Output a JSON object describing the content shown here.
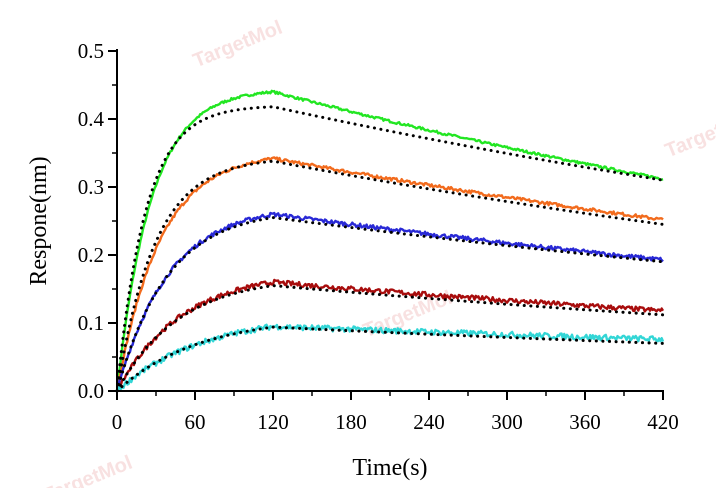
{
  "chart_data": {
    "type": "line",
    "title": "",
    "xlabel": "Time(s)",
    "ylabel": "Respone(nm)",
    "xlim": [
      0,
      420
    ],
    "ylim": [
      0.0,
      0.5
    ],
    "x_ticks": [
      0,
      60,
      120,
      180,
      240,
      300,
      360,
      420
    ],
    "x_tick_labels": [
      "0",
      "60",
      "120",
      "180",
      "240",
      "300",
      "360",
      "420"
    ],
    "y_ticks": [
      0.0,
      0.1,
      0.2,
      0.3,
      0.4,
      0.5
    ],
    "y_tick_labels": [
      "0.0",
      "0.1",
      "0.2",
      "0.3",
      "0.4",
      "0.5"
    ],
    "grid": false,
    "legend": "none",
    "association_end": 120,
    "fit_style": "black dotted",
    "series": [
      {
        "color": "#22e622",
        "peak": 0.44,
        "end": 0.312,
        "fit_peak": 0.418,
        "fit_end": 0.31,
        "k": 0.038,
        "fit_k": 0.045
      },
      {
        "color": "#f26b1d",
        "peak": 0.342,
        "end": 0.252,
        "fit_peak": 0.338,
        "fit_end": 0.245,
        "k": 0.03,
        "fit_k": 0.034
      },
      {
        "color": "#2929d6",
        "peak": 0.26,
        "end": 0.193,
        "fit_peak": 0.255,
        "fit_end": 0.19,
        "k": 0.025,
        "fit_k": 0.026
      },
      {
        "color": "#a80d0d",
        "peak": 0.16,
        "end": 0.118,
        "fit_peak": 0.155,
        "fit_end": 0.112,
        "k": 0.02,
        "fit_k": 0.021
      },
      {
        "color": "#33d6d6",
        "peak": 0.095,
        "end": 0.076,
        "fit_peak": 0.094,
        "fit_end": 0.07,
        "k": 0.015,
        "fit_k": 0.016
      }
    ],
    "watermark": "TargetMol"
  }
}
